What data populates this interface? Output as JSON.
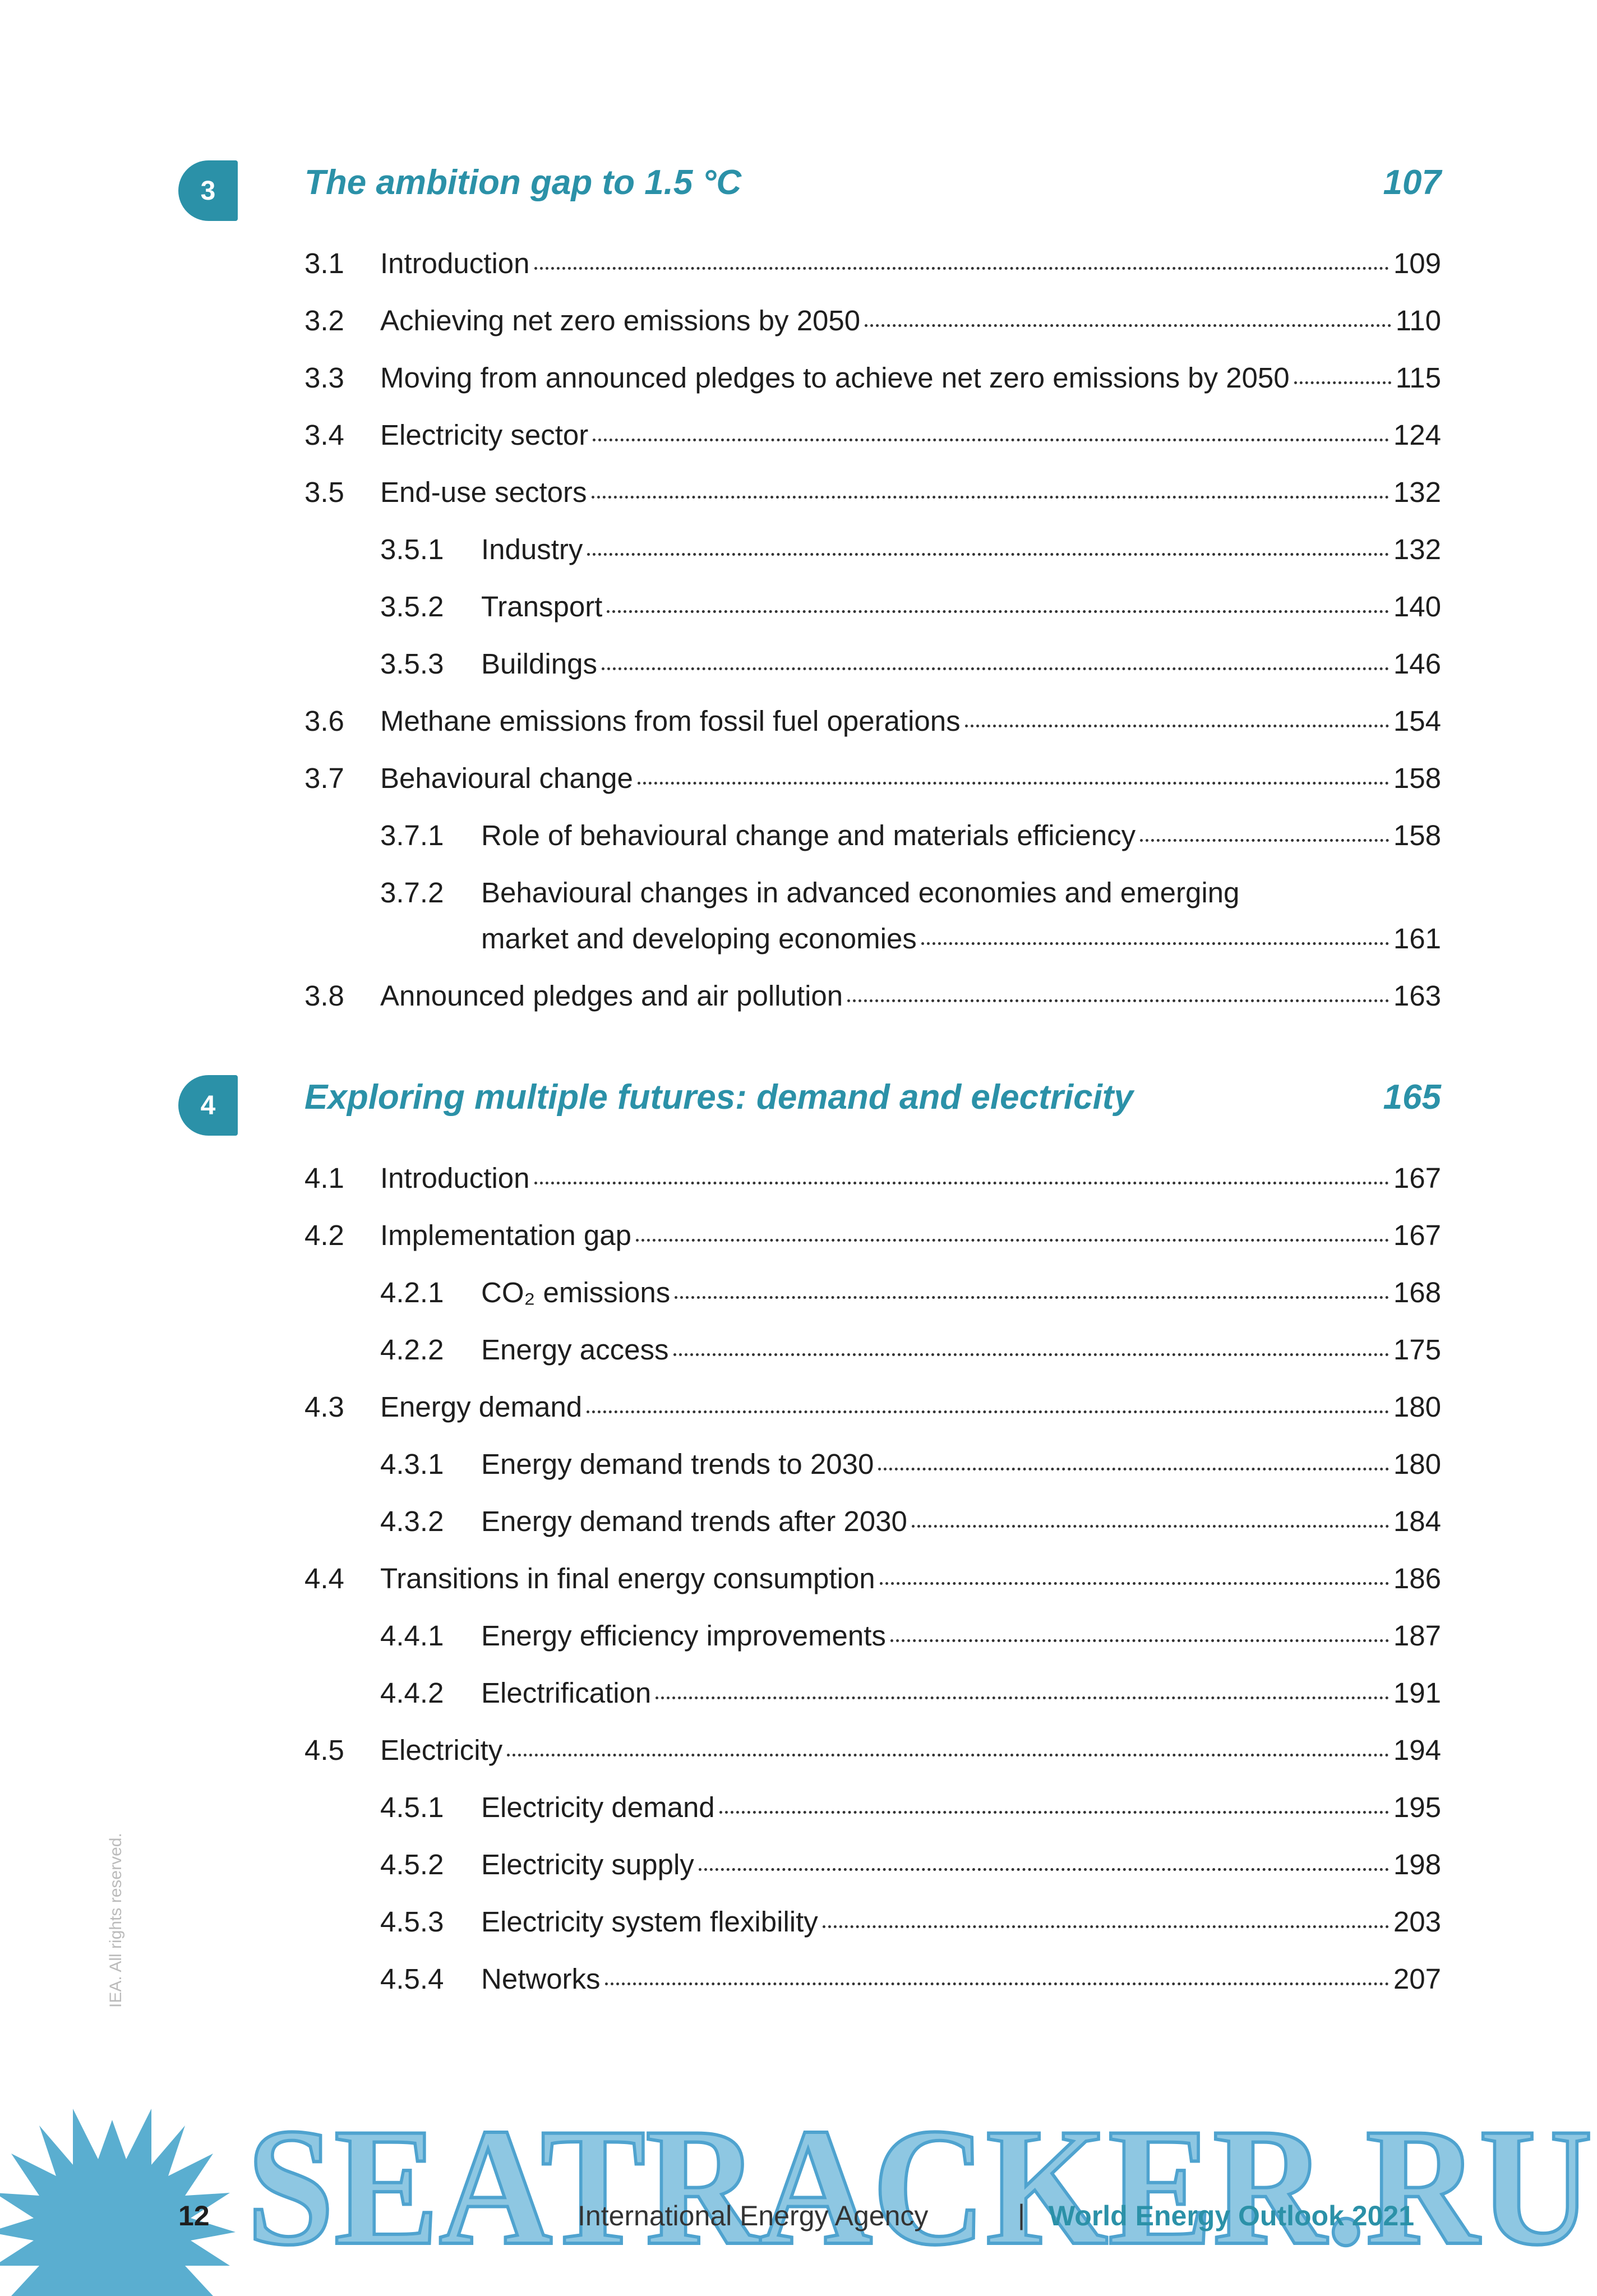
{
  "chapters": [
    {
      "number": "3",
      "title": "The ambition gap to 1.5 °C",
      "page": "107",
      "entries": [
        {
          "number": "3.1",
          "title": "Introduction",
          "page": "109"
        },
        {
          "number": "3.2",
          "title": "Achieving net zero emissions by 2050",
          "page": "110"
        },
        {
          "number": "3.3",
          "title": "Moving from announced pledges to achieve net zero emissions by 2050",
          "page": "115"
        },
        {
          "number": "3.4",
          "title": "Electricity sector",
          "page": "124"
        },
        {
          "number": "3.5",
          "title": "End-use sectors",
          "page": "132",
          "subentries": [
            {
              "number": "3.5.1",
              "title": "Industry",
              "page": "132"
            },
            {
              "number": "3.5.2",
              "title": "Transport",
              "page": "140"
            },
            {
              "number": "3.5.3",
              "title": "Buildings",
              "page": "146"
            }
          ]
        },
        {
          "number": "3.6",
          "title": "Methane emissions from fossil fuel operations",
          "page": "154"
        },
        {
          "number": "3.7",
          "title": "Behavioural change",
          "page": "158",
          "subentries": [
            {
              "number": "3.7.1",
              "title": "Role of behavioural change and materials efficiency",
              "page": "158"
            },
            {
              "number": "3.7.2",
              "title": [
                "Behavioural changes in advanced economies and emerging",
                "market and developing economies"
              ],
              "page": "161"
            }
          ]
        },
        {
          "number": "3.8",
          "title": "Announced pledges and air pollution",
          "page": "163"
        }
      ]
    },
    {
      "number": "4",
      "title": "Exploring multiple futures: demand and electricity",
      "page": "165",
      "entries": [
        {
          "number": "4.1",
          "title": "Introduction",
          "page": "167"
        },
        {
          "number": "4.2",
          "title": "Implementation gap",
          "page": "167",
          "subentries": [
            {
              "number": "4.2.1",
              "title": "CO₂ emissions",
              "page": "168"
            },
            {
              "number": "4.2.2",
              "title": "Energy access",
              "page": "175"
            }
          ]
        },
        {
          "number": "4.3",
          "title": "Energy demand",
          "page": "180",
          "subentries": [
            {
              "number": "4.3.1",
              "title": "Energy demand trends to 2030",
              "page": "180"
            },
            {
              "number": "4.3.2",
              "title": "Energy demand trends after 2030",
              "page": "184"
            }
          ]
        },
        {
          "number": "4.4",
          "title": "Transitions in final energy consumption",
          "page": "186",
          "subentries": [
            {
              "number": "4.4.1",
              "title": "Energy efficiency improvements",
              "page": "187"
            },
            {
              "number": "4.4.2",
              "title": "Electrification",
              "page": "191"
            }
          ]
        },
        {
          "number": "4.5",
          "title": "Electricity",
          "page": "194",
          "subentries": [
            {
              "number": "4.5.1",
              "title": "Electricity demand",
              "page": "195"
            },
            {
              "number": "4.5.2",
              "title": "Electricity supply",
              "page": "198"
            },
            {
              "number": "4.5.3",
              "title": "Electricity system flexibility",
              "page": "203"
            },
            {
              "number": "4.5.4",
              "title": "Networks",
              "page": "207"
            }
          ]
        }
      ]
    }
  ],
  "footer": {
    "page_number": "12",
    "publisher": "International Energy Agency",
    "separator": "|",
    "publication": "World Energy Outlook 2021"
  },
  "side_note": "IEA. All rights reserved.",
  "watermark": "SEATRACKER.RU"
}
